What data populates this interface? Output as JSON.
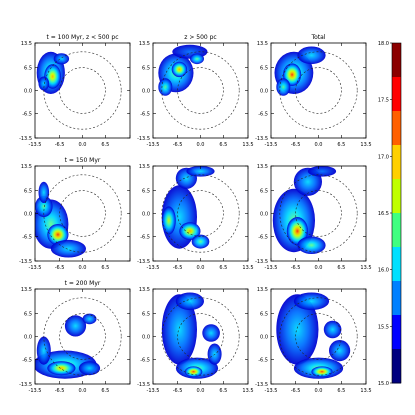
{
  "chart_data": {
    "type": "heatmap",
    "panel_titles": [
      [
        "t = 100 Myr, z < 500 pc",
        "z > 500 pc",
        "Total"
      ],
      [
        "t = 150 Myr",
        "",
        ""
      ],
      [
        "t = 200 Myr",
        "",
        ""
      ]
    ],
    "x_ticks": [
      [
        "-13.5",
        "-6.5",
        "0.0",
        "6.5"
      ],
      [
        "-13.5",
        "-6.5",
        "0.0",
        "6.5",
        "13.5"
      ],
      [
        "-13.5",
        "-6.5",
        "0.0",
        "6.5",
        "13.5"
      ]
    ],
    "y_ticks": [
      "13.5",
      "6.5",
      "0.0",
      "-6.5",
      "-13.5"
    ],
    "xlim": [
      -13.5,
      13.5
    ],
    "ylim": [
      -13.5,
      13.5
    ],
    "circle_radii": [
      6.5,
      11.0
    ],
    "colorbar": {
      "ticks": [
        "18.0",
        "17.5",
        "17.0",
        "16.5",
        "16.0",
        "15.5",
        "15.0"
      ],
      "range": [
        15.0,
        18.0
      ],
      "colors": [
        "#00007f",
        "#0000ff",
        "#0080ff",
        "#00e0ff",
        "#40ff80",
        "#c0ff00",
        "#ffd000",
        "#ff6000",
        "#ff0000",
        "#8b0000"
      ]
    },
    "panels": [
      [
        {
          "blobs": [
            [
              -9,
              5,
              4,
              6,
              0.55
            ],
            [
              -8.5,
              4,
              2.4,
              3.5,
              0.85
            ],
            [
              -6,
              9,
              2.2,
              1.6,
              0.45
            ],
            [
              -11,
              2,
              1.5,
              2,
              0.5
            ]
          ]
        },
        {
          "blobs": [
            [
              -7,
              5,
              5,
              5.5,
              0.55
            ],
            [
              -6,
              6,
              2.2,
              2.2,
              0.8
            ],
            [
              -3,
              11,
              5,
              2,
              0.35
            ],
            [
              -10,
              1,
              2,
              2.5,
              0.6
            ],
            [
              -1,
              9,
              2,
              1.5,
              0.6
            ]
          ]
        },
        {
          "blobs": [
            [
              -7,
              5,
              5.5,
              6,
              0.55
            ],
            [
              -7.5,
              4.5,
              2.6,
              3.2,
              0.9
            ],
            [
              -2,
              10,
              4,
              2.5,
              0.4
            ],
            [
              -10,
              1,
              2,
              2.5,
              0.6
            ]
          ]
        }
      ],
      [
        {
          "blobs": [
            [
              -9,
              -3,
              5,
              7,
              0.55
            ],
            [
              -7,
              -6,
              3,
              3,
              0.9
            ],
            [
              -11,
              2,
              2.5,
              3,
              0.6
            ],
            [
              -4,
              -10,
              5,
              2.5,
              0.5
            ],
            [
              -11,
              6,
              1.5,
              3,
              0.45
            ]
          ]
        },
        {
          "blobs": [
            [
              -6,
              -1,
              5,
              9,
              0.5
            ],
            [
              -4,
              10,
              3,
              3,
              0.5
            ],
            [
              0,
              12,
              4,
              1.5,
              0.4
            ],
            [
              -3,
              -5,
              3,
              2.5,
              0.85
            ],
            [
              0,
              -8,
              2.5,
              2,
              0.6
            ],
            [
              -9,
              -2,
              2,
              4,
              0.7
            ]
          ]
        },
        {
          "blobs": [
            [
              -7,
              -2,
              6,
              9,
              0.55
            ],
            [
              -6,
              -5,
              3,
              4,
              0.9
            ],
            [
              -3,
              9,
              4,
              4,
              0.45
            ],
            [
              1,
              12,
              4,
              1.5,
              0.35
            ],
            [
              -2,
              -9,
              4,
              2.5,
              0.6
            ]
          ]
        }
      ],
      [
        {
          "blobs": [
            [
              -5,
              -8,
              9,
              4,
              0.55
            ],
            [
              -6,
              -9,
              4,
              2,
              0.85
            ],
            [
              -11,
              -4,
              2,
              4,
              0.5
            ],
            [
              2,
              -9,
              3,
              2,
              0.5
            ],
            [
              -2,
              3,
              3,
              3,
              0.45
            ],
            [
              2,
              5,
              2,
              1.5,
              0.5
            ]
          ]
        },
        {
          "blobs": [
            [
              -6,
              2,
              5,
              10,
              0.45
            ],
            [
              -1,
              -9,
              6,
              3,
              0.6
            ],
            [
              -2,
              -10,
              2.5,
              1.5,
              0.9
            ],
            [
              -3,
              10,
              4,
              2.5,
              0.4
            ],
            [
              3,
              1,
              2.5,
              2.5,
              0.5
            ],
            [
              4,
              -5,
              2,
              3,
              0.5
            ]
          ]
        },
        {
          "blobs": [
            [
              -6,
              2,
              6,
              10,
              0.5
            ],
            [
              0,
              -9,
              7,
              3,
              0.6
            ],
            [
              1,
              -10,
              3,
              1.5,
              0.95
            ],
            [
              -2,
              10,
              5,
              2.5,
              0.45
            ],
            [
              4,
              2,
              2.5,
              2.5,
              0.5
            ],
            [
              6,
              -4,
              3,
              3,
              0.5
            ]
          ]
        }
      ]
    ]
  }
}
